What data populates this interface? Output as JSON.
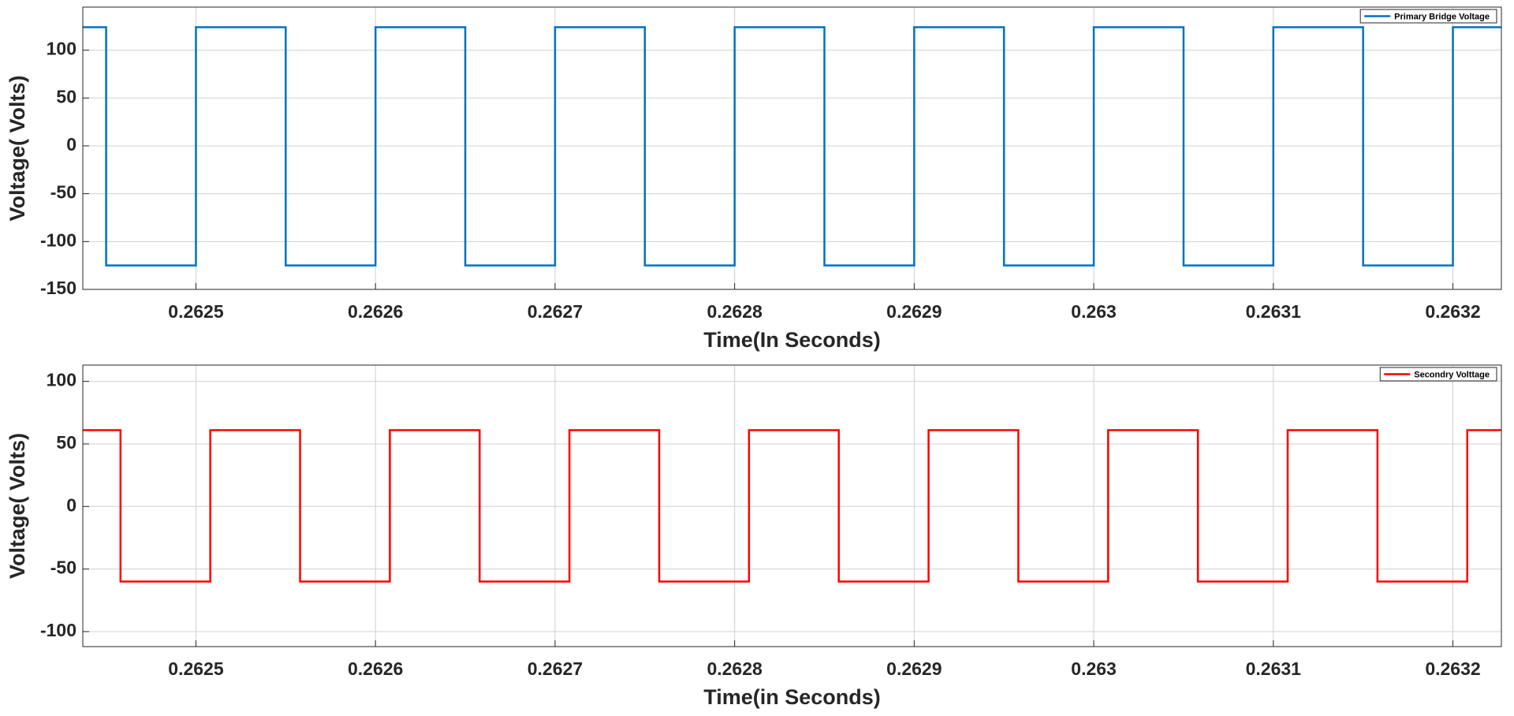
{
  "chart_data": [
    {
      "type": "line",
      "xlabel": "Time(In Seconds)",
      "ylabel": "Voltage( Volts)",
      "xlim": [
        0.262437,
        0.263227
      ],
      "ylim": [
        -150,
        145
      ],
      "xticks": [
        0.2625,
        0.2626,
        0.2627,
        0.2628,
        0.2629,
        0.263,
        0.2631,
        0.2632
      ],
      "yticks": [
        -150,
        -100,
        -50,
        0,
        50,
        100
      ],
      "grid": true,
      "legend": "upper right",
      "series": [
        {
          "name": "Primary Bridge Voltage",
          "color": "#0072bd",
          "x": [
            0.262437,
            0.26245,
            0.26245,
            0.2625,
            0.2625,
            0.26255,
            0.26255,
            0.2626,
            0.2626,
            0.26265,
            0.26265,
            0.2627,
            0.2627,
            0.26275,
            0.26275,
            0.2628,
            0.2628,
            0.26285,
            0.26285,
            0.2629,
            0.2629,
            0.26295,
            0.26295,
            0.263,
            0.263,
            0.26305,
            0.26305,
            0.2631,
            0.2631,
            0.26315,
            0.26315,
            0.2632,
            0.2632,
            0.263227
          ],
          "values": [
            124,
            124,
            -125,
            -125,
            124,
            124,
            -125,
            -125,
            124,
            124,
            -125,
            -125,
            124,
            124,
            -125,
            -125,
            124,
            124,
            -125,
            -125,
            124,
            124,
            -125,
            -125,
            124,
            124,
            -125,
            -125,
            124,
            124,
            -125,
            -125,
            124,
            124
          ]
        }
      ]
    },
    {
      "type": "line",
      "xlabel": "Time(in Seconds)",
      "ylabel": "Voltage( Volts)",
      "xlim": [
        0.262437,
        0.263227
      ],
      "ylim": [
        -112,
        113
      ],
      "xticks": [
        0.2625,
        0.2626,
        0.2627,
        0.2628,
        0.2629,
        0.263,
        0.2631,
        0.2632
      ],
      "yticks": [
        -100,
        -50,
        0,
        50,
        100
      ],
      "grid": true,
      "legend": "upper right",
      "series": [
        {
          "name": "Secondry Volttage",
          "color": "#ff0000",
          "x": [
            0.262437,
            0.262458,
            0.262458,
            0.262508,
            0.262508,
            0.262558,
            0.262558,
            0.262608,
            0.262608,
            0.262658,
            0.262658,
            0.262708,
            0.262708,
            0.262758,
            0.262758,
            0.262808,
            0.262808,
            0.262858,
            0.262858,
            0.262908,
            0.262908,
            0.262958,
            0.262958,
            0.263008,
            0.263008,
            0.263058,
            0.263058,
            0.263108,
            0.263108,
            0.263158,
            0.263158,
            0.263208,
            0.263208,
            0.263227
          ],
          "values": [
            61,
            61,
            -60,
            -60,
            61,
            61,
            -60,
            -60,
            61,
            61,
            -60,
            -60,
            61,
            61,
            -60,
            -60,
            61,
            61,
            -60,
            -60,
            61,
            61,
            -60,
            -60,
            61,
            61,
            -60,
            -60,
            61,
            61,
            -60,
            -60,
            61,
            61
          ]
        }
      ]
    }
  ]
}
